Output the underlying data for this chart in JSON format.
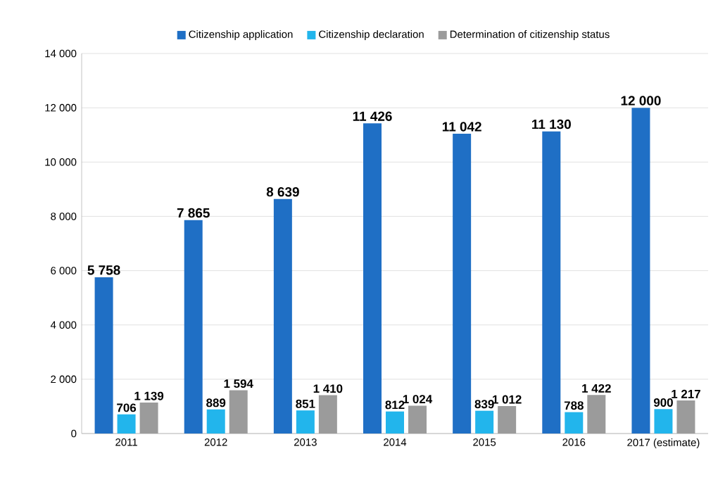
{
  "chart_data": {
    "type": "bar",
    "categories": [
      "2011",
      "2012",
      "2013",
      "2014",
      "2015",
      "2016",
      "2017 (estimate)"
    ],
    "series": [
      {
        "name": "Citizenship application",
        "color": "#1f6fc5",
        "values": [
          5758,
          7865,
          8639,
          11426,
          11042,
          11130,
          12000
        ],
        "value_labels": [
          "5 758",
          "7 865",
          "8 639",
          "11 426",
          "11 042",
          "11 130",
          "12 000"
        ]
      },
      {
        "name": "Citizenship declaration",
        "color": "#22b5ec",
        "values": [
          706,
          889,
          851,
          812,
          839,
          788,
          900
        ],
        "value_labels": [
          "706",
          "889",
          "851",
          "812",
          "839",
          "788",
          "900"
        ]
      },
      {
        "name": "Determination of citizenship status",
        "color": "#9b9b9b",
        "values": [
          1139,
          1594,
          1410,
          1024,
          1012,
          1422,
          1217
        ],
        "value_labels": [
          "1 139",
          "1 594",
          "1 410",
          "1 024",
          "1 012",
          "1 422",
          "1 217"
        ]
      }
    ],
    "ylim": [
      0,
      14000
    ],
    "yticks": [
      0,
      {
        "value": 2000,
        "label": "2 000"
      },
      {
        "value": 4000,
        "label": "4 000"
      },
      {
        "value": 6000,
        "label": "6 000"
      },
      {
        "value": 8000,
        "label": "8 000"
      },
      {
        "value": 10000,
        "label": "10 000"
      },
      {
        "value": 12000,
        "label": "12 000"
      },
      {
        "value": 14000,
        "label": "14 000"
      }
    ],
    "grid": "y",
    "legend": "top"
  }
}
